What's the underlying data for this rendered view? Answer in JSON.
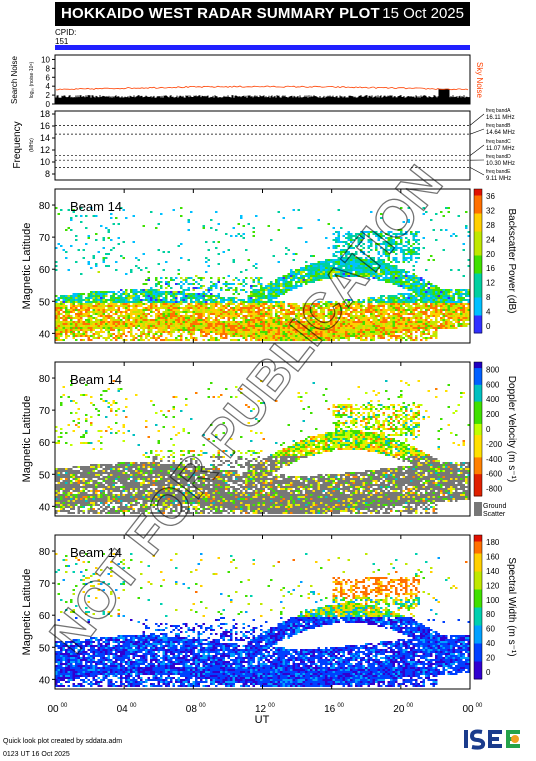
{
  "header": {
    "title": "HOKKAIDO WEST RADAR SUMMARY PLOT",
    "date": "15 Oct 2025"
  },
  "cpid": {
    "label": "CPID:",
    "value": "151"
  },
  "colors": {
    "cpid_bar": "#2020ff",
    "noise_line": "#ff4000",
    "ground": "#777777"
  },
  "noise_panel": {
    "ylabel": "Search Noise",
    "ylabel2": "log₁₀ (noise·10⁶)",
    "side_label": "Sky Noise",
    "ticks": [
      "0",
      "2",
      "4",
      "6",
      "8",
      "10"
    ]
  },
  "freq_panel": {
    "ylabel": "Frequency",
    "ylabel2": "(MHz)",
    "ticks": [
      "8",
      "10",
      "12",
      "14",
      "16",
      "18"
    ],
    "bands": [
      {
        "label": "freq bandA",
        "freq": "16.11 MHz"
      },
      {
        "label": "freq bandB",
        "freq": "14.64 MHz"
      },
      {
        "label": "freq bandC",
        "freq": "11.07 MHz"
      },
      {
        "label": "freq bandD",
        "freq": "10.30 MHz"
      },
      {
        "label": "freq bandE",
        "freq": "9.11 MHz"
      }
    ]
  },
  "chart_data": [
    {
      "type": "heatmap",
      "beam": "Beam 14",
      "ylabel": "Magnetic Latitude",
      "ylim": [
        37,
        85
      ],
      "colorbar_label": "Backscatter Power (dB)",
      "colorbar_ticks": [
        "0",
        "4",
        "8",
        "12",
        "16",
        "20",
        "24",
        "28",
        "32",
        "36"
      ]
    },
    {
      "type": "heatmap",
      "beam": "Beam 14",
      "ylabel": "Magnetic Latitude",
      "ylim": [
        37,
        85
      ],
      "colorbar_label": "Doppler Velocity (m s⁻¹)",
      "colorbar_ticks": [
        "-800",
        "-600",
        "-400",
        "-200",
        "0",
        "200",
        "400",
        "600",
        "800"
      ],
      "ground_label": "Ground",
      "ground_label2": "Scatter"
    },
    {
      "type": "heatmap",
      "beam": "Beam 14",
      "ylabel": "Magnetic Latitude",
      "ylim": [
        37,
        85
      ],
      "colorbar_label": "Spectral Width (m s⁻¹)",
      "colorbar_ticks": [
        "0",
        "20",
        "40",
        "60",
        "80",
        "100",
        "120",
        "140",
        "160",
        "180"
      ]
    }
  ],
  "lat_ticks": [
    "40",
    "50",
    "60",
    "70",
    "80"
  ],
  "x_axis": {
    "label": "UT",
    "ticks": [
      "00",
      "04",
      "08",
      "12",
      "16",
      "20",
      "00"
    ],
    "tick_sup": "00"
  },
  "watermark": "NOT FOR PUBLICATION",
  "footer": {
    "line1": "Quick look plot created by sddata.adm",
    "line2": "0123 UT 16 Oct 2025"
  },
  "logo": "ISEE"
}
